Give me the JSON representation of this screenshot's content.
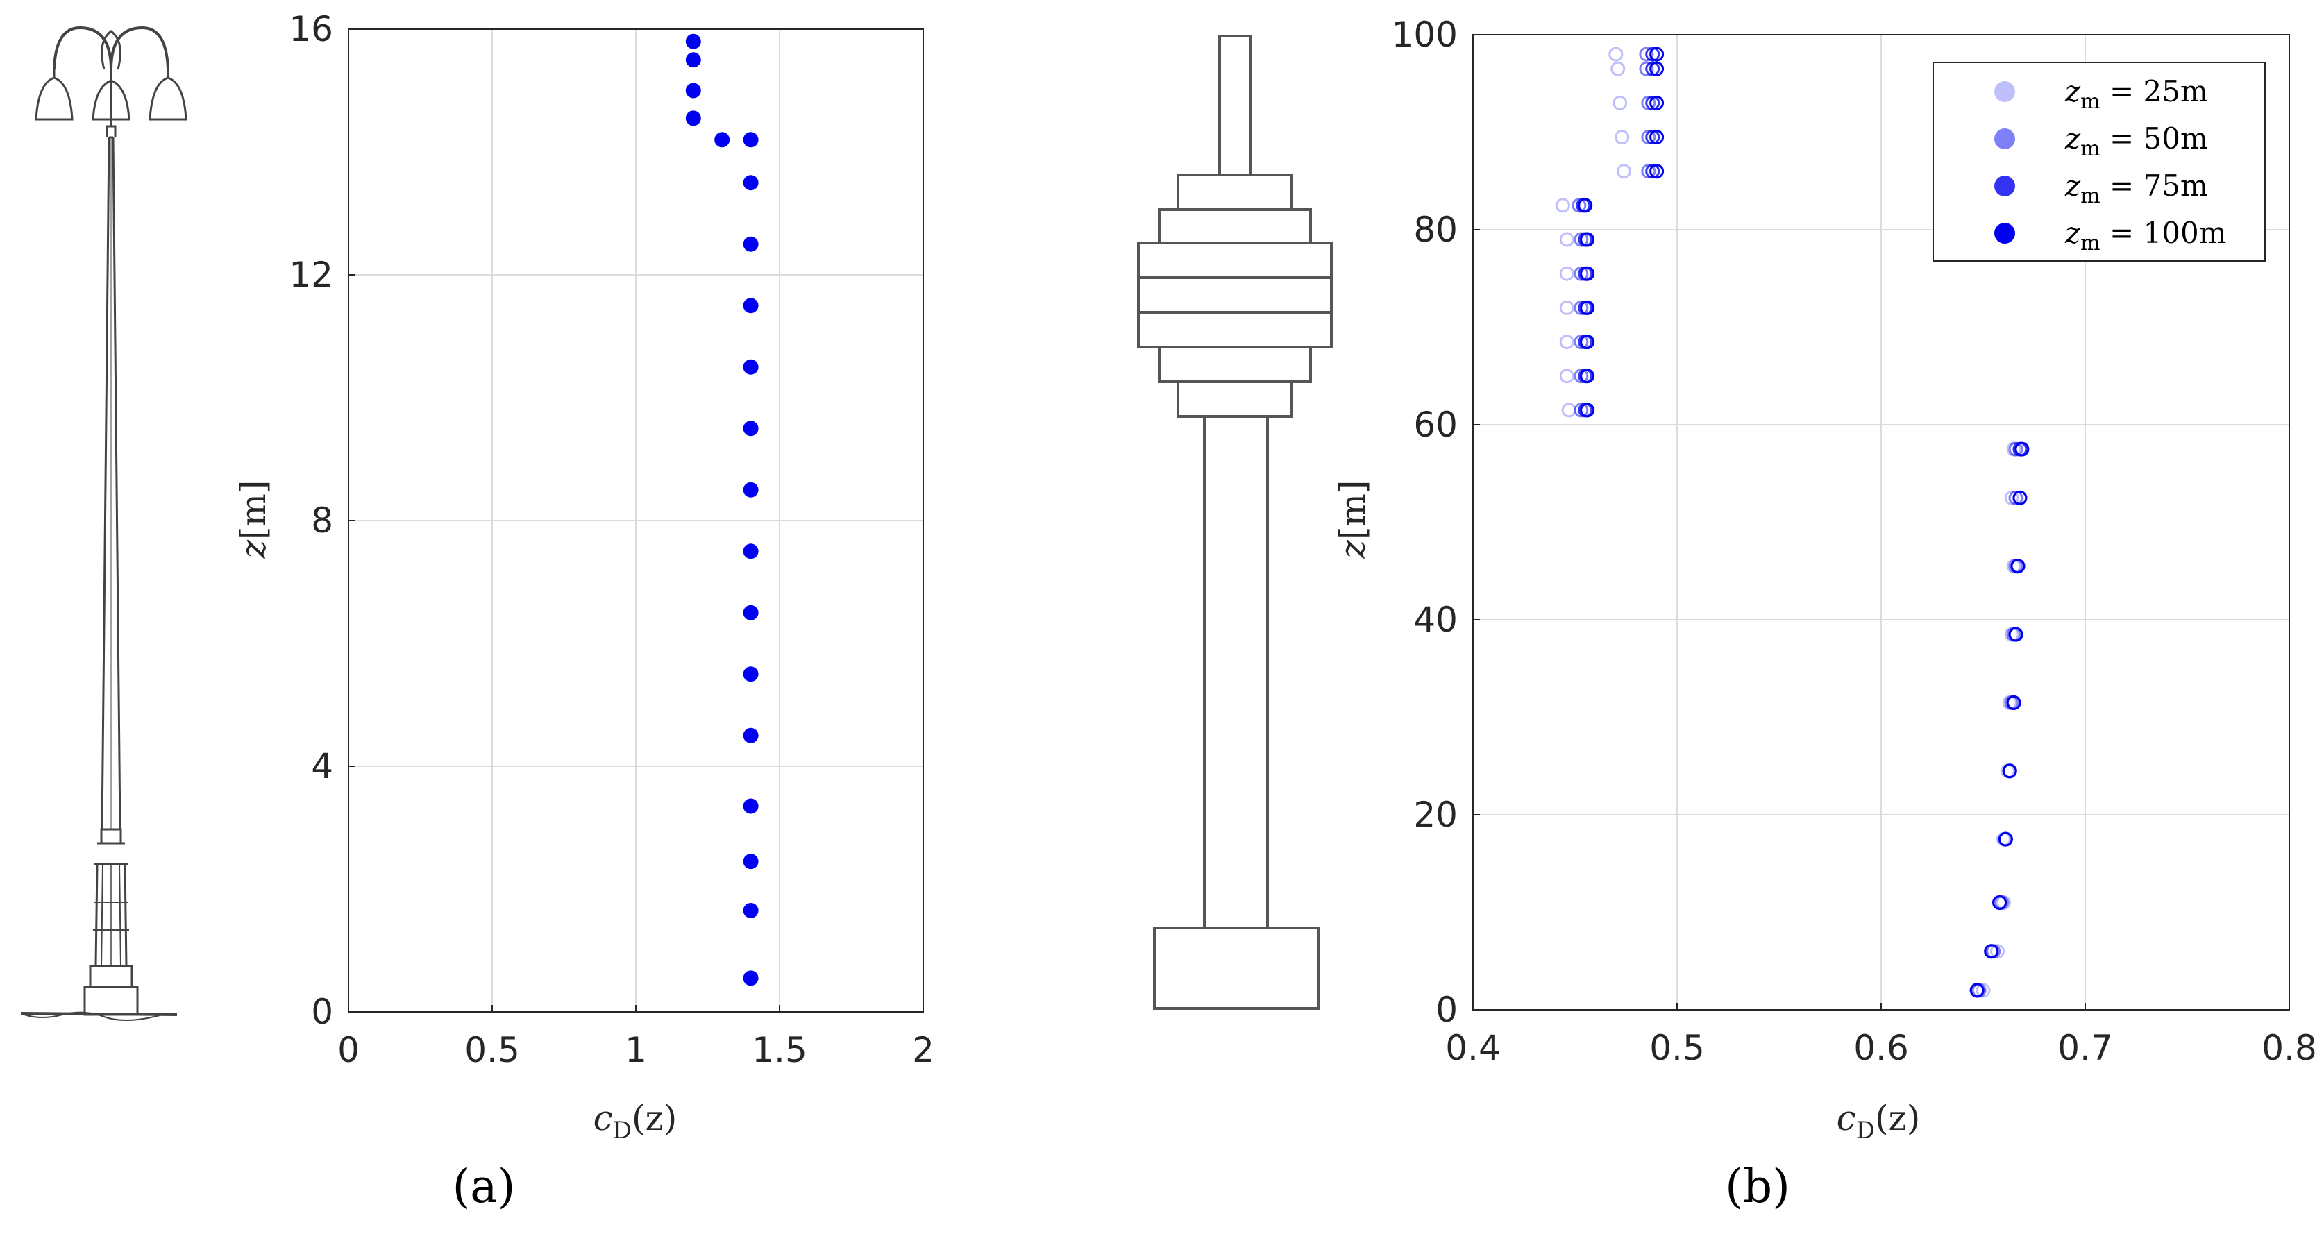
{
  "panel_labels": [
    "(a)",
    "(b)"
  ],
  "colors": {
    "marker": "#0000f0",
    "grid": "#dcdcdc",
    "axis": "#262626",
    "drawing": "#555555"
  },
  "illustrations": [
    "lamp-post-icon",
    "tower-icon"
  ],
  "chart_data": [
    {
      "id": "a",
      "type": "scatter",
      "xlabel": {
        "var": "c",
        "sub": "D",
        "arg": "(z)"
      },
      "ylabel": {
        "var": "z",
        "unit": "[m]"
      },
      "xlim": [
        0,
        2
      ],
      "ylim": [
        0,
        16
      ],
      "xticks": [
        0,
        0.5,
        1,
        1.5,
        2
      ],
      "xtick_labels": [
        "0",
        "0.5",
        "1",
        "1.5",
        "2"
      ],
      "yticks": [
        0,
        4,
        8,
        12,
        16
      ],
      "ytick_labels": [
        "0",
        "4",
        "8",
        "12",
        "16"
      ],
      "grid": true,
      "series": [
        {
          "marker": "filled-circle",
          "color": "#0000f0",
          "x": [
            1.4,
            1.4,
            1.4,
            1.4,
            1.4,
            1.4,
            1.4,
            1.4,
            1.4,
            1.4,
            1.4,
            1.4,
            1.4,
            1.4,
            1.4,
            1.3,
            1.2,
            1.2,
            1.2,
            1.2
          ],
          "y": [
            0.55,
            1.65,
            2.45,
            3.35,
            4.5,
            5.5,
            6.5,
            7.5,
            8.5,
            9.5,
            10.5,
            11.5,
            12.5,
            13.5,
            14.2,
            14.2,
            14.55,
            15.0,
            15.5,
            15.8
          ]
        }
      ]
    },
    {
      "id": "b",
      "type": "scatter",
      "xlabel": {
        "var": "c",
        "sub": "D",
        "arg": "(z)"
      },
      "ylabel": {
        "var": "z",
        "unit": "[m]"
      },
      "xlim": [
        0.4,
        0.8
      ],
      "ylim": [
        0,
        100
      ],
      "xticks": [
        0.4,
        0.5,
        0.6,
        0.7,
        0.8
      ],
      "xtick_labels": [
        "0.4",
        "0.5",
        "0.6",
        "0.7",
        "0.8"
      ],
      "yticks": [
        0,
        20,
        40,
        60,
        80,
        100
      ],
      "ytick_labels": [
        "0",
        "20",
        "40",
        "60",
        "80",
        "100"
      ],
      "grid": true,
      "legend_position": "top-right",
      "y": [
        2,
        6,
        11,
        17.5,
        24.5,
        31.5,
        38.5,
        45.5,
        52.5,
        57.5,
        61.5,
        65,
        68.5,
        72,
        75.5,
        79,
        82.5,
        86,
        89.5,
        93,
        96.5,
        98
      ],
      "series": [
        {
          "name": {
            "sub": "m",
            "value": "25",
            "unit": "m"
          },
          "opacity": 0.25,
          "x": [
            0.65,
            0.657,
            0.66,
            0.66,
            0.662,
            0.663,
            0.664,
            0.665,
            0.664,
            0.665,
            0.447,
            0.446,
            0.446,
            0.446,
            0.446,
            0.446,
            0.444,
            0.474,
            0.473,
            0.472,
            0.471,
            0.47
          ]
        },
        {
          "name": {
            "sub": "m",
            "value": "50",
            "unit": "m"
          },
          "opacity": 0.5,
          "x": [
            0.648,
            0.655,
            0.659,
            0.661,
            0.663,
            0.664,
            0.665,
            0.666,
            0.666,
            0.666,
            0.453,
            0.453,
            0.453,
            0.453,
            0.453,
            0.453,
            0.452,
            0.486,
            0.486,
            0.486,
            0.485,
            0.485
          ]
        },
        {
          "name": {
            "sub": "m",
            "value": "75",
            "unit": "m"
          },
          "opacity": 0.8,
          "x": [
            0.647,
            0.654,
            0.658,
            0.661,
            0.663,
            0.665,
            0.666,
            0.667,
            0.668,
            0.668,
            0.455,
            0.455,
            0.455,
            0.455,
            0.455,
            0.455,
            0.454,
            0.488,
            0.488,
            0.488,
            0.488,
            0.488
          ]
        },
        {
          "name": {
            "sub": "m",
            "value": "100",
            "unit": "m"
          },
          "opacity": 1.0,
          "x": [
            0.647,
            0.654,
            0.658,
            0.661,
            0.663,
            0.665,
            0.666,
            0.667,
            0.668,
            0.669,
            0.456,
            0.456,
            0.456,
            0.456,
            0.456,
            0.456,
            0.455,
            0.49,
            0.49,
            0.49,
            0.49,
            0.49
          ]
        }
      ]
    }
  ]
}
